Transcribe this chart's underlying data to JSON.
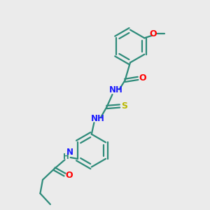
{
  "bg_color": "#ebebeb",
  "bond_color": "#2e8b7a",
  "N_color": "#1a1aff",
  "O_color": "#ff0000",
  "S_color": "#b8b800",
  "lw": 1.6,
  "fs": 8.5,
  "figsize": [
    3.0,
    3.0
  ],
  "dpi": 100,
  "xlim": [
    0,
    10
  ],
  "ylim": [
    0,
    10
  ]
}
